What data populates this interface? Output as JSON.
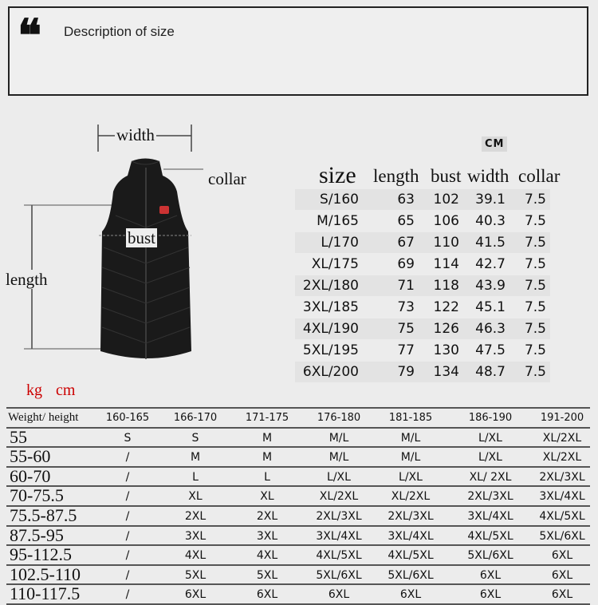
{
  "header": {
    "quote_mark": "❝",
    "title": "Description of size"
  },
  "diagram": {
    "width_label": "width",
    "collar_label": "collar",
    "bust_label": "bust",
    "length_label": "length"
  },
  "size_table": {
    "unit": "CM",
    "columns": [
      "size",
      "length",
      "bust",
      "width",
      "collar"
    ],
    "rows": [
      [
        "S/160",
        "63",
        "102",
        "39.1",
        "7.5"
      ],
      [
        "M/165",
        "65",
        "106",
        "40.3",
        "7.5"
      ],
      [
        "L/170",
        "67",
        "110",
        "41.5",
        "7.5"
      ],
      [
        "XL/175",
        "69",
        "114",
        "42.7",
        "7.5"
      ],
      [
        "2XL/180",
        "71",
        "118",
        "43.9",
        "7.5"
      ],
      [
        "3XL/185",
        "73",
        "122",
        "45.1",
        "7.5"
      ],
      [
        "4XL/190",
        "75",
        "126",
        "46.3",
        "7.5"
      ],
      [
        "5XL/195",
        "77",
        "130",
        "47.5",
        "7.5"
      ],
      [
        "6XL/200",
        "79",
        "134",
        "48.7",
        "7.5"
      ]
    ]
  },
  "fit_table": {
    "units": "kg  cm",
    "columns": [
      "Weight/ height",
      "160-165",
      "166-170",
      "171-175",
      "176-180",
      "181-185",
      "186-190",
      "191-200"
    ],
    "rows": [
      [
        "55",
        "S",
        "S",
        "M",
        "M/L",
        "M/L",
        "L/XL",
        "XL/2XL"
      ],
      [
        "55-60",
        "/",
        "M",
        "M",
        "M/L",
        "M/L",
        "L/XL",
        "XL/2XL"
      ],
      [
        "60-70",
        "/",
        "L",
        "L",
        "L/XL",
        "L/XL",
        "XL/ 2XL",
        "2XL/3XL"
      ],
      [
        "70-75.5",
        "/",
        "XL",
        "XL",
        "XL/2XL",
        "XL/2XL",
        "2XL/3XL",
        "3XL/4XL"
      ],
      [
        "75.5-87.5",
        "/",
        "2XL",
        "2XL",
        "2XL/3XL",
        "2XL/3XL",
        "3XL/4XL",
        "4XL/5XL"
      ],
      [
        "87.5-95",
        "/",
        "3XL",
        "3XL",
        "3XL/4XL",
        "3XL/4XL",
        "4XL/5XL",
        "5XL/6XL"
      ],
      [
        "95-112.5",
        "/",
        "4XL",
        "4XL",
        "4XL/5XL",
        "4XL/5XL",
        "5XL/6XL",
        "6XL"
      ],
      [
        "102.5-110",
        "/",
        "5XL",
        "5XL",
        "5XL/6XL",
        "5XL/6XL",
        "6XL",
        "6XL"
      ],
      [
        "110-117.5",
        "/",
        "6XL",
        "6XL",
        "6XL",
        "6XL",
        "6XL",
        "6XL"
      ]
    ]
  },
  "colors": {
    "background": "#ececec",
    "units_red": "#cc0000",
    "vest": "#1a1a1a"
  }
}
